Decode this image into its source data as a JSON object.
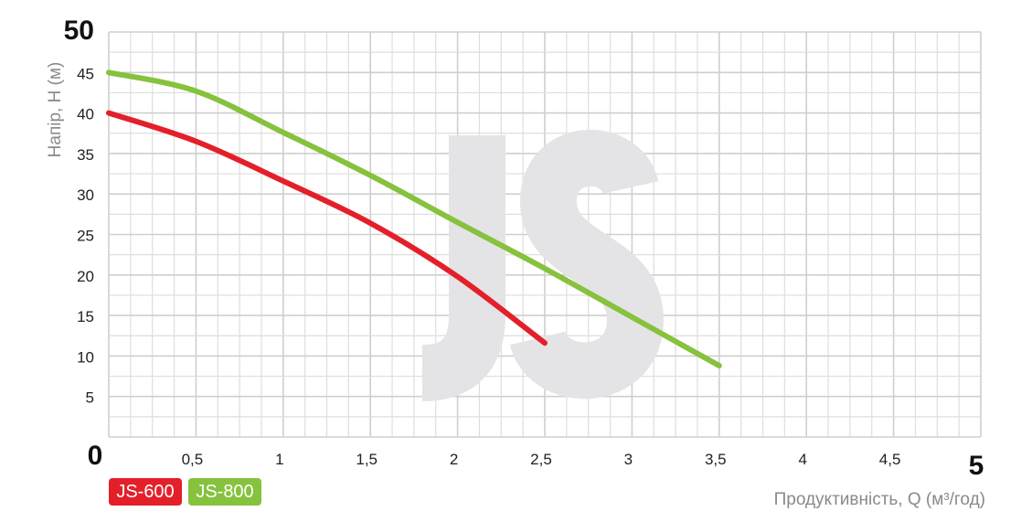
{
  "chart_data": {
    "type": "line",
    "xlabel": "Продуктивність, Q (м³/год)",
    "ylabel": "Напір, Н (м)",
    "xlim": [
      0,
      5
    ],
    "ylim": [
      0,
      50
    ],
    "x_ticks": [
      "0",
      "0,5",
      "1",
      "1,5",
      "2",
      "2,5",
      "3",
      "3,5",
      "4",
      "4,5",
      "5"
    ],
    "y_ticks": [
      "0",
      "5",
      "10",
      "15",
      "20",
      "25",
      "30",
      "35",
      "40",
      "45",
      "50"
    ],
    "grid": true,
    "legend_position": "bottom-left",
    "watermark": "JS",
    "series": [
      {
        "name": "JS-600",
        "color": "#e3202a",
        "x": [
          0,
          0.5,
          1,
          1.5,
          2,
          2.5
        ],
        "y": [
          40,
          36.5,
          31.6,
          26.4,
          19.8,
          11.6
        ]
      },
      {
        "name": "JS-800",
        "color": "#86c23d",
        "x": [
          0,
          0.5,
          1,
          1.5,
          2,
          2.5,
          3,
          3.5
        ],
        "y": [
          45,
          42.7,
          37.6,
          32.3,
          26.5,
          20.8,
          14.8,
          8.8
        ]
      }
    ]
  }
}
